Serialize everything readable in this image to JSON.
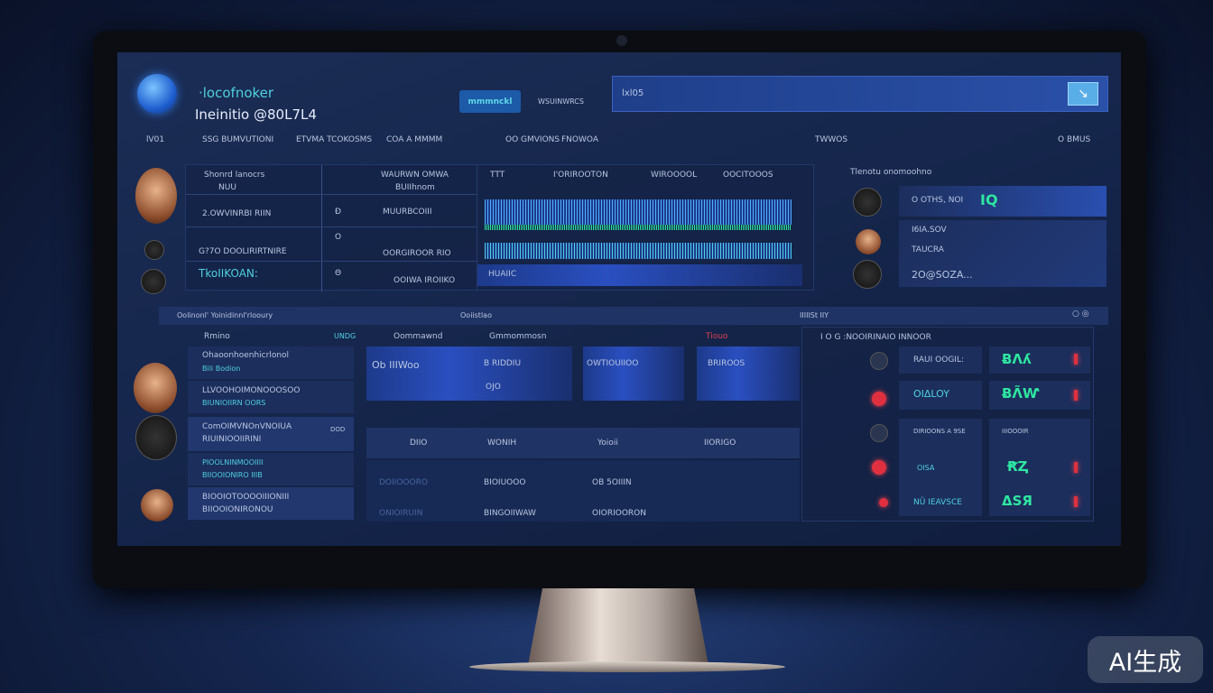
{
  "header": {
    "brand": "·locofnoker",
    "subtitle": "Ineinitio @80L7L4",
    "active_button": "mmmnckl",
    "secondary_button": "WSUINWRCS",
    "search_value": "lxl05"
  },
  "columns": [
    "lV01",
    "SSG BUMVUTIONI",
    "ETVMA TCOKOSMS",
    "COA A MMMM",
    "OO GMVIONS",
    "FNOWOA",
    "TWWOS",
    "O BMUS"
  ],
  "table_rows": [
    {
      "a": "Shonrd lanocrs",
      "b": "NUU",
      "c": "WAURWN OMWA",
      "d": "BUIIhnom"
    },
    {
      "a": "2.OWVINRBI RIIN",
      "b": "Ð",
      "c": "MUURBCOIII"
    },
    {
      "a": "G?7O DOOLIRIRTNIRE",
      "b": "O",
      "c": "OORGIROOR RIO"
    },
    {
      "a": "TkoIIKOAN:",
      "b": "Θ",
      "c": "OOIWA IROIIKO"
    }
  ],
  "wave_headers": [
    "TTT",
    "I'ORIROOTON",
    "WIROOOOL",
    "OOCITOOOS"
  ],
  "wave_label": "HUAIIC",
  "right_top": {
    "title": "Tlenotu onomoohno",
    "items": [
      "O OTHS, NOI",
      "I6IA.SOV",
      "TAUCRA",
      "2O@SOZA..."
    ],
    "value": "IQ"
  },
  "section2": {
    "title": "Oolinonl' Yoinidinnl'rlooury",
    "mid": "Ooiistlao",
    "right": "IIIIISt IIY"
  },
  "list_header": [
    "Rmino",
    "UNDG"
  ],
  "list_items": [
    {
      "title": "Ohaoonhoenhicrlonol",
      "sub": "Bili Bodion"
    },
    {
      "title": "LLVOOHOIMONOOOSOO",
      "sub": "BIUNIOIIRN OORS"
    },
    {
      "title": "ComOIMVNOnVNOIUA",
      "sub": "RIUINIOOIIRINI",
      "side": "DOD"
    },
    {
      "title": "PIOOLNINMOOIIII",
      "sub": "BIIOOIONIRO IIIB"
    },
    {
      "title": "BIOOIOTOOOOIIIONIII",
      "sub": "BIIOOIONIRONOU"
    }
  ],
  "cards_header": [
    "Oommawnd",
    "Gmmommosn",
    "Tiouo"
  ],
  "cards": [
    "Ob IIIWoo",
    "B RIDDIU",
    "OWTIOUIIOO",
    "BRIROOS"
  ],
  "card_sub": "OJO",
  "bottom_headers": [
    "DIIO",
    "WONIH",
    "Yoioii",
    "IIORIGO"
  ],
  "bottom_cells": [
    "DOIIOOORO",
    "BIOIUOOO",
    "OB 5OIIIN",
    "ONIOIRUIN",
    "BINGOIIWAW",
    "OIORIOORON"
  ],
  "status": {
    "header": "I O G :NOOIRINAIO INNOOR",
    "rows": [
      {
        "label": "RAUI OOGIL:",
        "value": "ɃɅʎ"
      },
      {
        "label": "OIΔLOY",
        "value": "ɃɅ̃Ⱳ"
      },
      {
        "label": "DIRIOONS A 9SE",
        "value": "IIIOOOIR"
      },
      {
        "label": "OISA",
        "value": "ꞦⱫ"
      },
      {
        "label": "NÜ IEAVSCE",
        "value": "ΔSЯ"
      }
    ]
  },
  "watermark": "AI生成",
  "colors": {
    "accent": "#2ee6a0",
    "highlight": "#4fd0e0",
    "alert": "#e03040",
    "panel": "#1c2e5c"
  }
}
